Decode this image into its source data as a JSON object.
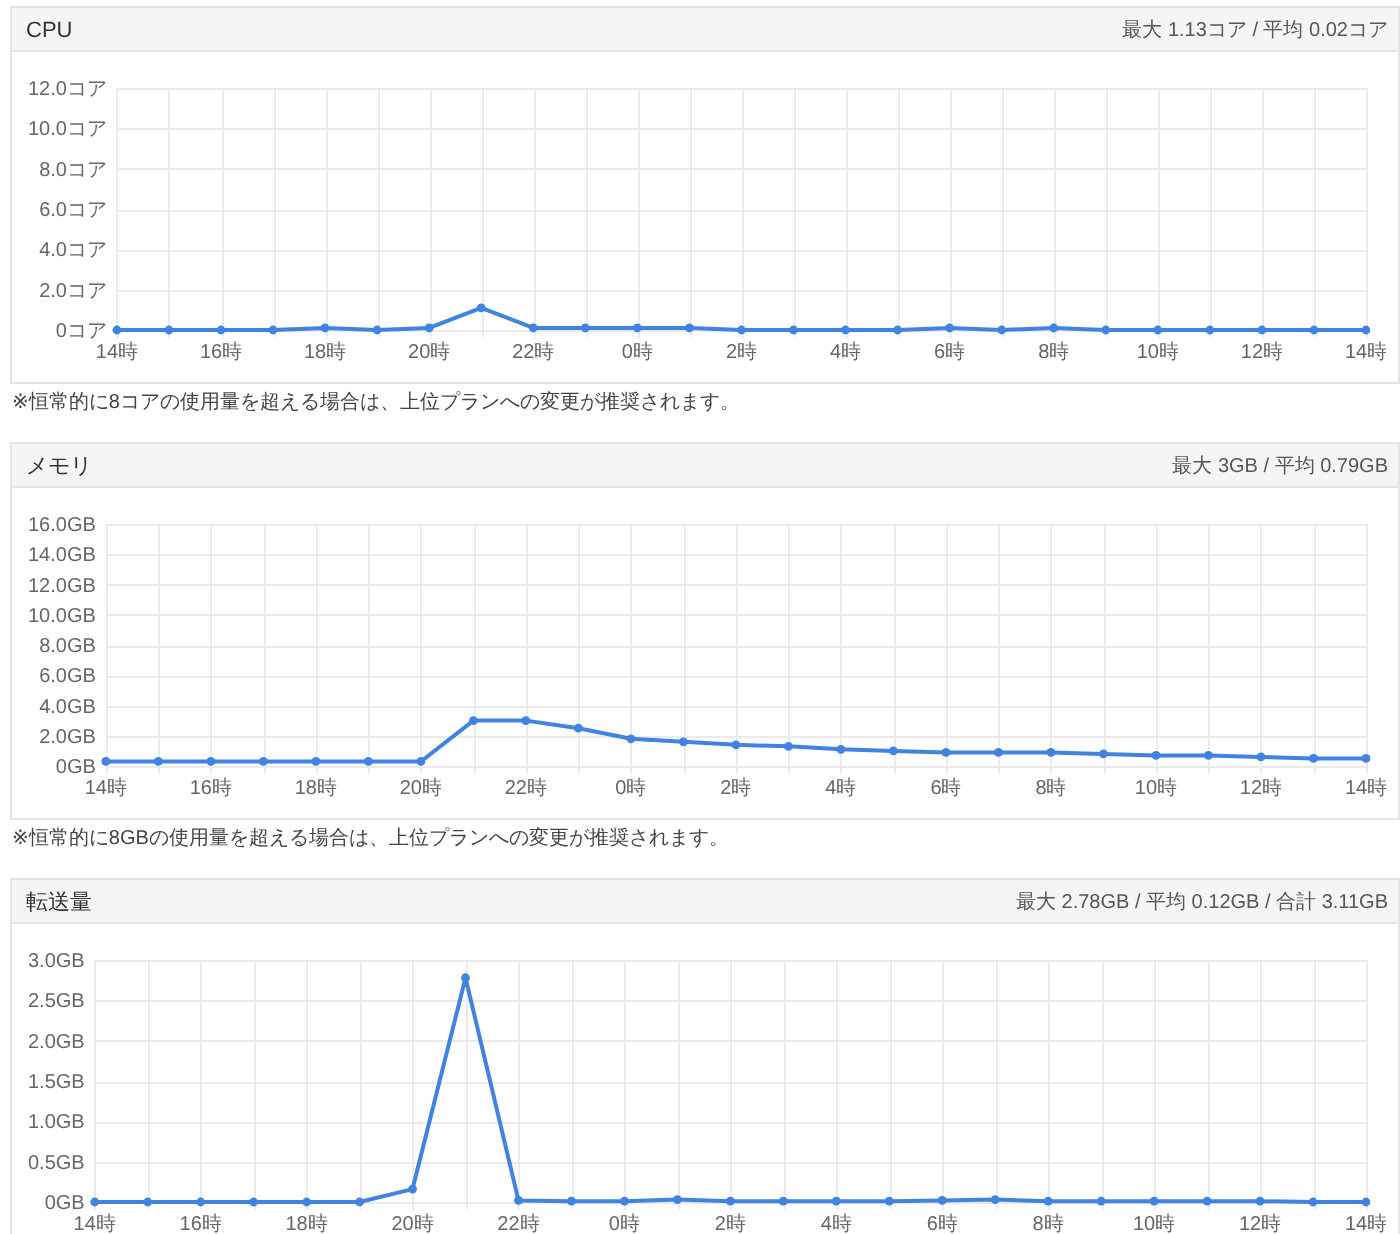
{
  "chart_data": [
    {
      "type": "line",
      "title": "CPU",
      "subtitle": "最大 1.13コア / 平均 0.02コア",
      "annotations": [
        "※恒常的に8コアの使用量を超える場合は、上位プランへの変更が推奨されます。"
      ],
      "categories": [
        "14時",
        null,
        "16時",
        null,
        "18時",
        null,
        "20時",
        null,
        "22時",
        null,
        "0時",
        null,
        "2時",
        null,
        "4時",
        null,
        "6時",
        null,
        "8時",
        null,
        "10時",
        null,
        "12時",
        null,
        "14時"
      ],
      "values": [
        0,
        0,
        0,
        0,
        0.1,
        0,
        0.1,
        1.1,
        0.1,
        0.1,
        0.1,
        0.1,
        0,
        0,
        0,
        0,
        0.1,
        0,
        0.1,
        0,
        0,
        0,
        0,
        0,
        0
      ],
      "color": "#4183e0",
      "ylim": [
        0,
        12
      ],
      "yticks": [
        {
          "value": 0,
          "label": "0コア"
        },
        {
          "value": 2,
          "label": "2.0コア"
        },
        {
          "value": 4,
          "label": "4.0コア"
        },
        {
          "value": 6,
          "label": "6.0コア"
        },
        {
          "value": 8,
          "label": "8.0コア"
        },
        {
          "value": 10,
          "label": "10.0コア"
        },
        {
          "value": 12,
          "label": "12.0コア"
        }
      ],
      "grid": true,
      "marker": "circle",
      "line_style": "solid"
    },
    {
      "type": "line",
      "title": "メモリ",
      "subtitle": "最大 3GB / 平均 0.79GB",
      "annotations": [
        "※恒常的に8GBの使用量を超える場合は、上位プランへの変更が推奨されます。"
      ],
      "categories": [
        "14時",
        null,
        "16時",
        null,
        "18時",
        null,
        "20時",
        null,
        "22時",
        null,
        "0時",
        null,
        "2時",
        null,
        "4時",
        null,
        "6時",
        null,
        "8時",
        null,
        "10時",
        null,
        "12時",
        null,
        "14時"
      ],
      "values": [
        0.3,
        0.3,
        0.3,
        0.3,
        0.3,
        0.3,
        0.3,
        3.0,
        3.0,
        2.5,
        1.8,
        1.6,
        1.4,
        1.3,
        1.1,
        1.0,
        0.9,
        0.9,
        0.9,
        0.8,
        0.7,
        0.7,
        0.6,
        0.5,
        0.5
      ],
      "color": "#4183e0",
      "ylim": [
        0,
        16
      ],
      "yticks": [
        {
          "value": 0,
          "label": "0GB"
        },
        {
          "value": 2,
          "label": "2.0GB"
        },
        {
          "value": 4,
          "label": "4.0GB"
        },
        {
          "value": 6,
          "label": "6.0GB"
        },
        {
          "value": 8,
          "label": "8.0GB"
        },
        {
          "value": 10,
          "label": "10.0GB"
        },
        {
          "value": 12,
          "label": "12.0GB"
        },
        {
          "value": 14,
          "label": "14.0GB"
        },
        {
          "value": 16,
          "label": "16.0GB"
        }
      ],
      "grid": true,
      "marker": "circle",
      "line_style": "solid"
    },
    {
      "type": "line",
      "title": "転送量",
      "subtitle": "最大 2.78GB / 平均 0.12GB / 合計 3.11GB",
      "categories": [
        "14時",
        null,
        "16時",
        null,
        "18時",
        null,
        "20時",
        null,
        "22時",
        null,
        "0時",
        null,
        "2時",
        null,
        "4時",
        null,
        "6時",
        null,
        "8時",
        null,
        "10時",
        null,
        "12時",
        null,
        "14時"
      ],
      "values": [
        0,
        0,
        0,
        0,
        0,
        0,
        0.16,
        2.78,
        0.02,
        0.01,
        0.01,
        0.03,
        0.01,
        0.01,
        0.01,
        0.01,
        0.02,
        0.03,
        0.01,
        0.01,
        0.01,
        0.01,
        0.01,
        0,
        0
      ],
      "color": "#4183e0",
      "ylim": [
        0,
        3
      ],
      "yticks": [
        {
          "value": 0,
          "label": "0GB"
        },
        {
          "value": 0.5,
          "label": "0.5GB"
        },
        {
          "value": 1,
          "label": "1.0GB"
        },
        {
          "value": 1.5,
          "label": "1.5GB"
        },
        {
          "value": 2,
          "label": "2.0GB"
        },
        {
          "value": 2.5,
          "label": "2.5GB"
        },
        {
          "value": 3,
          "label": "3.0GB"
        }
      ],
      "grid": true,
      "marker": "circle",
      "line_style": "solid"
    }
  ]
}
